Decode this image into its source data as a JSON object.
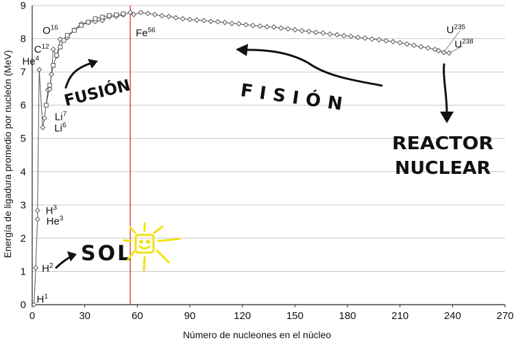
{
  "chart_data": {
    "type": "scatter",
    "xlabel": "Número de nucleones en el núcleo",
    "ylabel": "Energía de ligadura promedio por nucleón (MeV)",
    "xlim": [
      0,
      270
    ],
    "ylim": [
      0,
      9
    ],
    "xticks": [
      0,
      30,
      60,
      90,
      120,
      150,
      180,
      210,
      240,
      270
    ],
    "yticks": [
      0,
      1,
      2,
      3,
      4,
      5,
      6,
      7,
      8,
      9
    ],
    "grid": "horizontal",
    "series": [
      {
        "marker": "diamond",
        "color": "#555555",
        "points": [
          [
            1,
            0.0
          ],
          [
            2,
            1.11
          ],
          [
            3,
            2.57
          ],
          [
            3,
            2.83
          ],
          [
            4,
            7.07
          ],
          [
            6,
            5.33
          ],
          [
            7,
            5.61
          ],
          [
            9,
            6.46
          ],
          [
            10,
            6.48
          ],
          [
            11,
            6.93
          ],
          [
            12,
            7.68
          ],
          [
            14,
            7.48
          ],
          [
            16,
            7.98
          ],
          [
            20,
            8.03
          ],
          [
            24,
            8.26
          ],
          [
            28,
            8.45
          ],
          [
            32,
            8.49
          ],
          [
            36,
            8.52
          ],
          [
            40,
            8.55
          ],
          [
            44,
            8.66
          ],
          [
            48,
            8.67
          ],
          [
            52,
            8.72
          ],
          [
            56,
            8.79
          ],
          [
            58,
            8.73
          ],
          [
            62,
            8.79
          ],
          [
            66,
            8.76
          ],
          [
            70,
            8.73
          ],
          [
            74,
            8.69
          ],
          [
            78,
            8.67
          ],
          [
            82,
            8.63
          ],
          [
            86,
            8.6
          ],
          [
            90,
            8.58
          ],
          [
            94,
            8.56
          ],
          [
            98,
            8.55
          ],
          [
            102,
            8.52
          ],
          [
            106,
            8.51
          ],
          [
            110,
            8.49
          ],
          [
            114,
            8.46
          ],
          [
            118,
            8.45
          ],
          [
            122,
            8.42
          ],
          [
            126,
            8.4
          ],
          [
            130,
            8.38
          ],
          [
            134,
            8.36
          ],
          [
            138,
            8.35
          ],
          [
            142,
            8.32
          ],
          [
            146,
            8.3
          ],
          [
            150,
            8.27
          ],
          [
            154,
            8.24
          ],
          [
            158,
            8.22
          ],
          [
            162,
            8.19
          ],
          [
            166,
            8.17
          ],
          [
            170,
            8.14
          ],
          [
            174,
            8.12
          ],
          [
            178,
            8.09
          ],
          [
            182,
            8.07
          ],
          [
            186,
            8.04
          ],
          [
            190,
            8.02
          ],
          [
            194,
            7.99
          ],
          [
            198,
            7.97
          ],
          [
            202,
            7.94
          ],
          [
            206,
            7.91
          ],
          [
            210,
            7.88
          ],
          [
            214,
            7.84
          ],
          [
            218,
            7.8
          ],
          [
            222,
            7.76
          ],
          [
            226,
            7.72
          ],
          [
            230,
            7.68
          ],
          [
            232,
            7.64
          ],
          [
            235,
            7.59
          ],
          [
            238,
            7.57
          ]
        ]
      },
      {
        "marker": "square",
        "color": "#555555",
        "points": [
          [
            8,
            6.0
          ],
          [
            10,
            6.6
          ],
          [
            12,
            7.2
          ],
          [
            14,
            7.5
          ],
          [
            16,
            7.75
          ],
          [
            18,
            7.95
          ],
          [
            20,
            8.1
          ],
          [
            24,
            8.25
          ],
          [
            28,
            8.4
          ],
          [
            32,
            8.5
          ],
          [
            36,
            8.6
          ],
          [
            40,
            8.65
          ],
          [
            44,
            8.7
          ],
          [
            48,
            8.72
          ],
          [
            52,
            8.75
          ]
        ]
      }
    ],
    "reference_line": {
      "x": 56,
      "color": "#cc2222"
    },
    "nuclides": [
      {
        "base": "H",
        "mass": "1",
        "x": 1,
        "y": 0.0
      },
      {
        "base": "H",
        "mass": "2",
        "x": 2,
        "y": 1.11
      },
      {
        "base": "He",
        "mass": "3",
        "x": 3,
        "y": 2.57
      },
      {
        "base": "H",
        "mass": "3",
        "x": 3,
        "y": 2.83
      },
      {
        "base": "He",
        "mass": "4",
        "x": 4,
        "y": 7.07
      },
      {
        "base": "Li",
        "mass": "6",
        "x": 6,
        "y": 5.33
      },
      {
        "base": "Li",
        "mass": "7",
        "x": 7,
        "y": 5.61
      },
      {
        "base": "C",
        "mass": "12",
        "x": 12,
        "y": 7.68
      },
      {
        "base": "O",
        "mass": "16",
        "x": 16,
        "y": 7.98
      },
      {
        "base": "Fe",
        "mass": "56",
        "x": 56,
        "y": 8.79
      },
      {
        "base": "U",
        "mass": "235",
        "x": 235,
        "y": 7.59
      },
      {
        "base": "U",
        "mass": "238",
        "x": 238,
        "y": 7.57
      }
    ],
    "annotations": [
      {
        "text": "FUSIÓN"
      },
      {
        "text": "FISIÓN"
      },
      {
        "text": "REACTOR"
      },
      {
        "text": "NUCLEAR"
      },
      {
        "text": "SOL"
      }
    ]
  }
}
